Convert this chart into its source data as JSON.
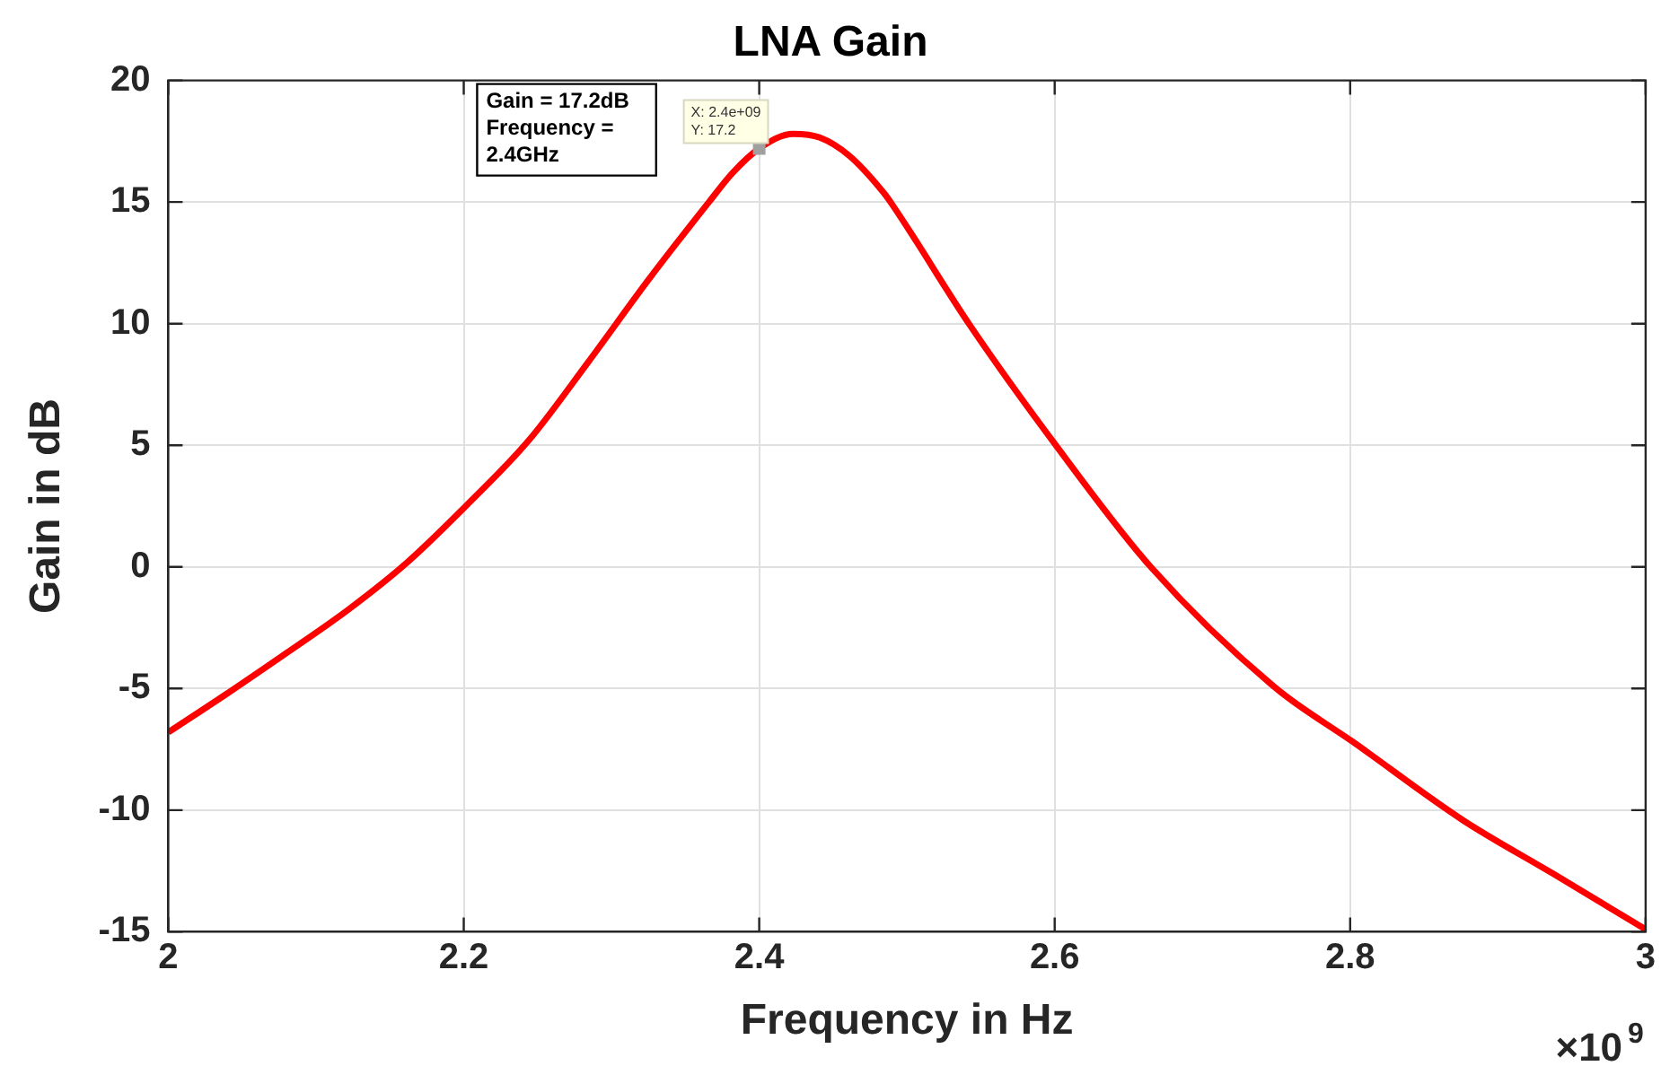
{
  "chart_data": {
    "type": "line",
    "title": "LNA Gain",
    "xlabel": "Frequency in Hz",
    "ylabel": "Gain in dB",
    "series": [
      {
        "color": "#ff0000",
        "x": [
          2.0,
          2.04,
          2.081,
          2.122,
          2.162,
          2.203,
          2.244,
          2.284,
          2.325,
          2.366,
          2.382,
          2.4,
          2.423,
          2.441,
          2.461,
          2.484,
          2.49,
          2.543,
          2.602,
          2.665,
          2.75,
          2.802,
          2.876,
          2.937,
          3.0
        ],
        "values": [
          -6.8,
          -5.2,
          -3.5,
          -1.75,
          0.2,
          2.6,
          5.2,
          8.4,
          11.8,
          15.0,
          16.2,
          17.2,
          17.8,
          17.65,
          16.9,
          15.4,
          14.9,
          9.9,
          4.9,
          0.0,
          -5.0,
          -7.2,
          -10.4,
          -12.6,
          -14.9
        ]
      }
    ],
    "xlim": [
      2.0,
      3.0
    ],
    "xticks": [
      2,
      2.2,
      2.4,
      2.6,
      2.8,
      3
    ],
    "ylim": [
      -15,
      20
    ],
    "yticks": [
      -15,
      -10,
      -5,
      0,
      5,
      10,
      15,
      20
    ],
    "grid": true,
    "legend": false,
    "marker": "none",
    "line_style": "solid",
    "annotations": [
      {
        "text": "X: 2.4e+09\nY: 17.2",
        "x": 2.4,
        "y": 17.2
      },
      "Gain = 17.2dB\nFrequency =\n2.4GHz",
      "×10$^{9}$"
    ]
  }
}
